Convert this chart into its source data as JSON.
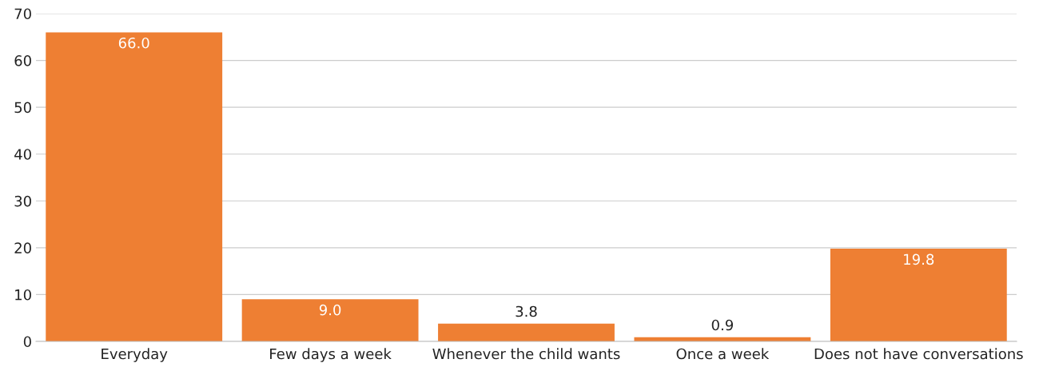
{
  "chart_data": {
    "type": "bar",
    "categories": [
      "Everyday",
      "Few days a week",
      "Whenever the child wants",
      "Once a week",
      "Does not have conversations"
    ],
    "values": [
      66.0,
      9.0,
      3.8,
      0.9,
      19.8
    ],
    "color": "#ee7f33",
    "ylim": [
      0,
      70
    ],
    "yticks": [
      0,
      10,
      20,
      30,
      40,
      50,
      60,
      70
    ],
    "value_labels": [
      "66.0",
      "9.0",
      "3.8",
      "0.9",
      "19.8"
    ],
    "grid": "y",
    "legend": false
  }
}
